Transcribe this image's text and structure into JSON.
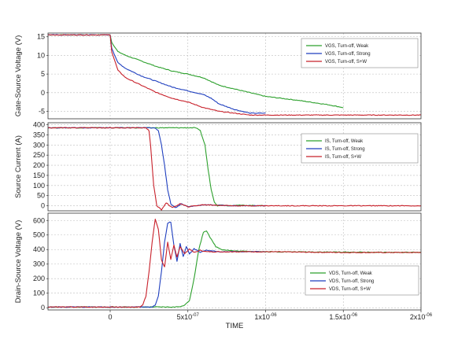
{
  "chart_data": [
    {
      "type": "line",
      "title": "",
      "ylabel": "Gate-Source Voltage (V)",
      "xlabel": "",
      "xlim": [
        -4e-07,
        2e-06
      ],
      "ylim": [
        -7,
        16
      ],
      "yticks": [
        -5,
        0,
        5,
        10,
        15
      ],
      "ytick_labels": [
        "-5",
        "0",
        "5",
        "10",
        "15"
      ],
      "legend_placement": "top-right",
      "grid": true,
      "series": [
        {
          "name": "VGS, Turn-off, Weak",
          "color": "#2ca02c",
          "x": [
            -4e-07,
            0,
            1e-08,
            5e-08,
            1e-07,
            2e-07,
            3e-07,
            4e-07,
            5e-07,
            6e-07,
            7e-07,
            8e-07,
            9e-07,
            1e-06,
            1.2e-06,
            1.4e-06,
            1.5e-06
          ],
          "y": [
            15.5,
            15.5,
            13.5,
            11,
            10,
            8.5,
            7,
            5.8,
            5,
            4,
            2,
            1,
            0,
            -1,
            -2,
            -3.2,
            -4
          ]
        },
        {
          "name": "VGS, Turn-off, Strong",
          "color": "#1f3fbf",
          "x": [
            -4e-07,
            0,
            1e-08,
            5e-08,
            1e-07,
            2e-07,
            3e-07,
            4e-07,
            5e-07,
            6e-07,
            6.5e-07,
            7e-07,
            8e-07,
            9e-07,
            1e-06
          ],
          "y": [
            15.5,
            15.5,
            12,
            8,
            6.5,
            4.5,
            3,
            1.5,
            0.5,
            -0.5,
            -1.5,
            -3,
            -4.5,
            -5.5,
            -5.5
          ]
        },
        {
          "name": "VGS, Turn-off, S+W",
          "color": "#c8202a",
          "x": [
            -4e-07,
            0,
            1e-08,
            5e-08,
            1e-07,
            2e-07,
            2.5e-07,
            3e-07,
            4e-07,
            5e-07,
            6e-07,
            7e-07,
            8e-07,
            9e-07,
            1e-06,
            1.5e-06,
            2e-06
          ],
          "y": [
            15.5,
            15.5,
            11,
            6,
            4,
            2,
            1,
            0,
            -1.5,
            -2.5,
            -4,
            -5,
            -5.5,
            -6,
            -6,
            -6,
            -6
          ]
        }
      ]
    },
    {
      "type": "line",
      "title": "",
      "ylabel": "Source Current (A)",
      "xlabel": "",
      "xlim": [
        -4e-07,
        2e-06
      ],
      "ylim": [
        -25,
        410
      ],
      "yticks": [
        0,
        50,
        100,
        150,
        200,
        250,
        300,
        350,
        400
      ],
      "ytick_labels": [
        "0",
        "50",
        "100",
        "150",
        "200",
        "250",
        "300",
        "350",
        "400"
      ],
      "legend_placement": "top-right",
      "grid": true,
      "series": [
        {
          "name": "IS, Turn-off, Weak",
          "color": "#2ca02c",
          "x": [
            -4e-07,
            5.5e-07,
            5.8e-07,
            6.1e-07,
            6.3e-07,
            6.5e-07,
            6.7e-07,
            6.9e-07,
            7.2e-07,
            7.6e-07,
            8e-07,
            1e-06
          ],
          "y": [
            385,
            385,
            370,
            300,
            180,
            80,
            20,
            0,
            5,
            0,
            3,
            0
          ]
        },
        {
          "name": "IS, Turn-off, Strong",
          "color": "#1f3fbf",
          "x": [
            -4e-07,
            2.9e-07,
            3.1e-07,
            3.3e-07,
            3.5e-07,
            3.7e-07,
            3.9e-07,
            4.2e-07,
            4.6e-07,
            5e-07,
            6e-07,
            8e-07,
            1e-06
          ],
          "y": [
            385,
            385,
            370,
            300,
            200,
            80,
            10,
            -10,
            10,
            -5,
            5,
            0,
            0
          ]
        },
        {
          "name": "IS, Turn-off, S+W",
          "color": "#c8202a",
          "x": [
            -4e-07,
            2.3e-07,
            2.5e-07,
            2.6e-07,
            2.7e-07,
            2.8e-07,
            3e-07,
            3.3e-07,
            3.6e-07,
            4e-07,
            4.5e-07,
            5e-07,
            6e-07,
            8e-07,
            1e-06,
            1.5e-06,
            2e-06
          ],
          "y": [
            385,
            385,
            370,
            300,
            200,
            100,
            0,
            -20,
            15,
            -10,
            10,
            -5,
            5,
            0,
            0,
            0,
            0
          ]
        }
      ]
    },
    {
      "type": "line",
      "title": "",
      "ylabel": "Drain-Source Voltage (V)",
      "xlabel": "TIME",
      "xlim": [
        -4e-07,
        2e-06
      ],
      "ylim": [
        -15,
        650
      ],
      "yticks": [
        0,
        100,
        200,
        300,
        400,
        500,
        600
      ],
      "ytick_labels": [
        "0",
        "100",
        "200",
        "300",
        "400",
        "500",
        "600"
      ],
      "xticks": [
        0,
        5e-07,
        1e-06,
        1.5e-06,
        2e-06
      ],
      "xtick_labels": [
        {
          "base": "0",
          "exp": ""
        },
        {
          "base": "5x10",
          "exp": "-07"
        },
        {
          "base": "1x10",
          "exp": "-06"
        },
        {
          "base": "1.5x10",
          "exp": "-06"
        },
        {
          "base": "2x10",
          "exp": "-06"
        }
      ],
      "legend_placement": "bottom-right",
      "grid": true,
      "series": [
        {
          "name": "VDS, Turn-off, Weak",
          "color": "#2ca02c",
          "x": [
            -4e-07,
            4.2e-07,
            4.7e-07,
            5.1e-07,
            5.4e-07,
            5.7e-07,
            6e-07,
            6.2e-07,
            6.5e-07,
            6.8e-07,
            7.2e-07,
            8e-07,
            1e-06,
            2e-06
          ],
          "y": [
            5,
            5,
            12,
            50,
            200,
            400,
            520,
            530,
            470,
            420,
            400,
            390,
            385,
            380
          ]
        },
        {
          "name": "VDS, Turn-off, Strong",
          "color": "#1f3fbf",
          "x": [
            -4e-07,
            2.7e-07,
            2.9e-07,
            3.1e-07,
            3.3e-07,
            3.5e-07,
            3.7e-07,
            3.9e-07,
            4.1e-07,
            4.3e-07,
            4.5e-07,
            4.7e-07,
            4.9e-07,
            5.1e-07,
            5.4e-07,
            5.8e-07,
            6.2e-07,
            7e-07,
            1e-06
          ],
          "y": [
            5,
            5,
            20,
            80,
            250,
            450,
            580,
            590,
            430,
            320,
            440,
            350,
            420,
            370,
            405,
            380,
            395,
            385,
            385
          ]
        },
        {
          "name": "VDS, Turn-off, S+W",
          "color": "#c8202a",
          "x": [
            -4e-07,
            1.9e-07,
            2.1e-07,
            2.3e-07,
            2.5e-07,
            2.7e-07,
            2.9e-07,
            3.1e-07,
            3.3e-07,
            3.5e-07,
            3.7e-07,
            3.9e-07,
            4.1e-07,
            4.3e-07,
            4.5e-07,
            4.8e-07,
            5.1e-07,
            5.4e-07,
            5.8e-07,
            6.2e-07,
            7e-07,
            1e-06,
            1.5e-06,
            2e-06
          ],
          "y": [
            5,
            5,
            20,
            80,
            250,
            450,
            610,
            540,
            330,
            280,
            450,
            330,
            430,
            350,
            420,
            370,
            405,
            380,
            395,
            385,
            385,
            385,
            380,
            380
          ]
        }
      ]
    }
  ]
}
